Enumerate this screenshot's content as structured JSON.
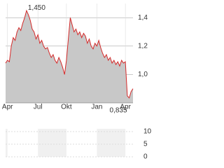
{
  "chart_data": [
    {
      "type": "area",
      "values": [
        1.08,
        1.1,
        1.09,
        1.2,
        1.26,
        1.24,
        1.3,
        1.33,
        1.31,
        1.36,
        1.4,
        1.45,
        1.42,
        1.38,
        1.32,
        1.3,
        1.25,
        1.28,
        1.22,
        1.24,
        1.2,
        1.18,
        1.19,
        1.15,
        1.12,
        1.14,
        1.1,
        1.08,
        1.12,
        1.09,
        1.05,
        1.0,
        1.1,
        1.25,
        1.4,
        1.35,
        1.3,
        1.32,
        1.28,
        1.3,
        1.26,
        1.29,
        1.27,
        1.22,
        1.25,
        1.2,
        1.18,
        1.22,
        1.2,
        1.24,
        1.19,
        1.15,
        1.12,
        1.14,
        1.1,
        1.12,
        1.08,
        1.1,
        1.07,
        1.09,
        1.06,
        1.1,
        1.08,
        1.09,
        0.85,
        0.835,
        0.88,
        0.9
      ],
      "color": "#d42a2a",
      "fill": "#c8c8c8",
      "xlim": [
        0,
        67
      ],
      "xticks": [
        {
          "value": 1,
          "label": "Apr"
        },
        {
          "value": 17,
          "label": "Jul"
        },
        {
          "value": 32,
          "label": "Okt"
        },
        {
          "value": 48,
          "label": "Jan"
        },
        {
          "value": 63,
          "label": "Apr"
        }
      ],
      "ylim": [
        0.8,
        1.5
      ],
      "yticks": [
        {
          "value": 1.0,
          "label": "1,0"
        },
        {
          "value": 1.2,
          "label": "1,2"
        },
        {
          "value": 1.4,
          "label": "1,4"
        }
      ],
      "grid": true,
      "annotations": [
        {
          "value": 1.45,
          "label": "1,450"
        },
        {
          "value": 0.835,
          "label": "0,835"
        }
      ]
    },
    {
      "type": "volume",
      "ylim": [
        0,
        10
      ],
      "yticks": [
        0,
        5,
        10
      ]
    }
  ]
}
